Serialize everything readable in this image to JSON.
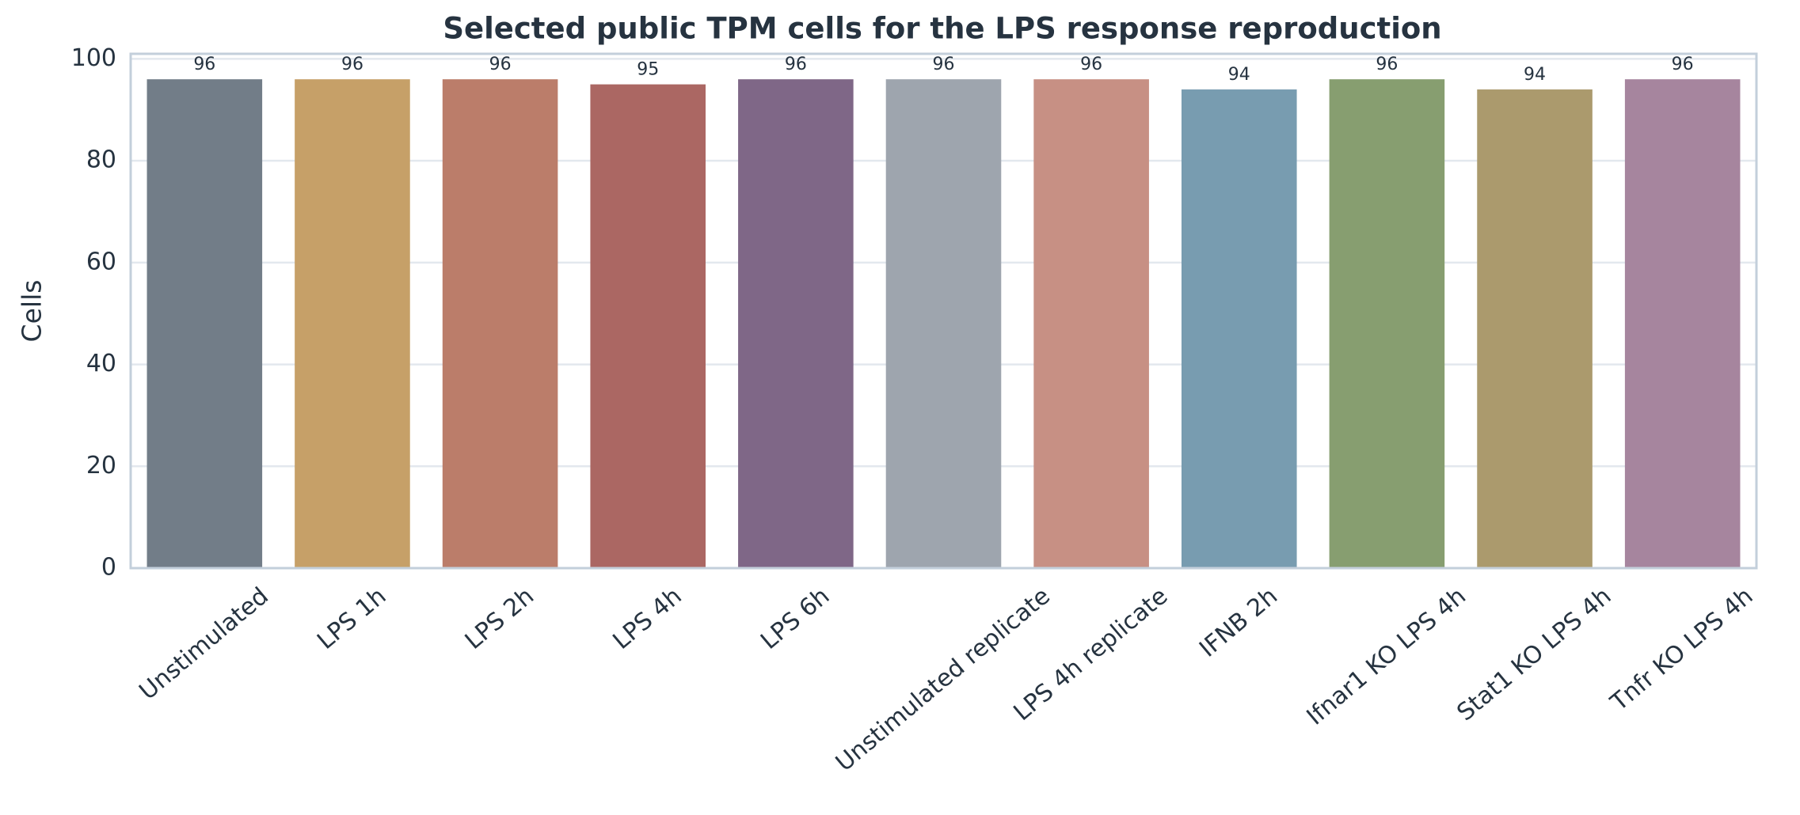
{
  "chart_data": {
    "type": "bar",
    "title": "Selected public TPM cells for the LPS response reproduction",
    "y_label": "Cells",
    "categories": [
      "Unstimulated",
      "LPS 1h",
      "LPS 2h",
      "LPS 4h",
      "LPS 6h",
      "Unstimulated replicate",
      "LPS 4h replicate",
      "IFNB 2h",
      "Ifnar1 KO LPS 4h",
      "Stat1 KO LPS 4h",
      "Tnfr KO LPS 4h"
    ],
    "values": [
      96,
      96,
      96,
      95,
      96,
      96,
      96,
      94,
      96,
      94,
      96
    ],
    "colors": [
      "#727d88",
      "#c6a068",
      "#bb7d6a",
      "#ab6763",
      "#7f6787",
      "#9ea5ae",
      "#c79084",
      "#789cb0",
      "#879e70",
      "#ab9a6d",
      "#a6859e"
    ],
    "ylim": [
      0,
      101
    ],
    "yticks": [
      0,
      20,
      40,
      60,
      80,
      100
    ],
    "grid": true
  }
}
